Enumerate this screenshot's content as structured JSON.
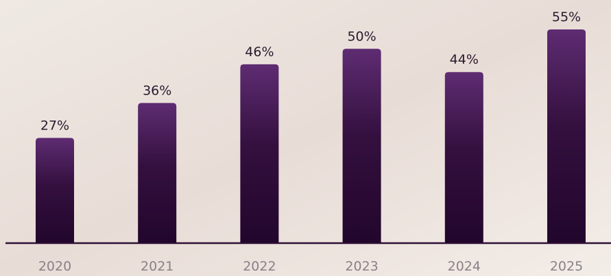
{
  "chart_data": {
    "type": "bar",
    "categories": [
      "2020",
      "2021",
      "2022",
      "2023",
      "2024",
      "2025"
    ],
    "values": [
      27,
      36,
      46,
      50,
      44,
      55
    ],
    "value_labels": [
      "27%",
      "36%",
      "46%",
      "50%",
      "44%",
      "55%"
    ]
  }
}
